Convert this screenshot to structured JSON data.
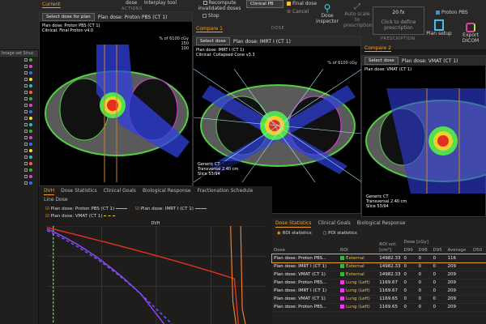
{
  "toolbar": {
    "actions_label": "ACTIONS",
    "dose_label": "DOSE",
    "prescription_label": "PRESCRIPTION",
    "interplay_tool": "Interplay tool",
    "dose": "dose",
    "recompute": "Recompute invalidated doses",
    "stop": "Stop",
    "clinical": "Clinical PB",
    "final_dose": "Final dose",
    "cancel": "Cancel",
    "dose_inspector": "Dose inspector",
    "auto_scale": "Auto scale to prescription",
    "fractions": "20 fx",
    "define_prescription": "Click to define prescription",
    "plan_type": "Proton PBS",
    "plan_setup": "Plan setup",
    "export": "Export DICOM"
  },
  "left_panel": {
    "header_a": "Image set",
    "header_b": "Struc",
    "roi_colors": [
      "#3cb043",
      "#e040e0",
      "#3070ff",
      "#f0e020",
      "#30c0c0",
      "#ff6030",
      "#3cb043",
      "#e040e0",
      "#3070ff",
      "#f0e020",
      "#30c0c0",
      "#3cb043",
      "#e040e0",
      "#3070ff",
      "#f0e020",
      "#30c0c0",
      "#ff6030",
      "#3cb043",
      "#e040e0",
      "#3070ff"
    ]
  },
  "views": [
    {
      "tab": "Current",
      "select": "Select dose for plan",
      "plan": "Plan dose: Proton PBS (CT 1)",
      "info1": "Plan dose: Proton PBS (CT 1)",
      "info2": "Clinical: Final Proton v4.0",
      "scale": "% of 6100 cGy",
      "scale_values": [
        "150",
        "100"
      ]
    },
    {
      "tab": "Compare 1",
      "select": "Select dose",
      "plan": "Plan dose: IMRT I (CT 1)",
      "info1": "Plan dose: IMRT I (CT 1)",
      "info2": "Clinical: Collapsed Cone v3.3",
      "scale": "% of 6100 cGy",
      "overlay1": "Generic CT",
      "overlay2": "Transversal 2.40 cm",
      "overlay3": "Slice 53/94"
    },
    {
      "tab": "Compare 2",
      "select": "Select dose",
      "plan": "Plan dose: VMAT (CT 1)",
      "info1": "Plan dose: VMAT (CT 1)",
      "overlay1": "Generic CT",
      "overlay2": "Transversal 2.40 cm",
      "overlay3": "Slice 53/94"
    }
  ],
  "dvh": {
    "tabs": [
      "DVH",
      "Dose Statistics",
      "Clinical Goals",
      "Biological Response",
      "Fractionation Schedule",
      "Line Dose"
    ],
    "legend": [
      "Plan dose: Proton PBS (CT 1)",
      "Plan dose: IMRT I (CT 1)",
      "Plan dose: VMAT (CT 1)"
    ],
    "xlabel": "DVH"
  },
  "stats": {
    "tabs": [
      "Dose Statistics",
      "Clinical Goals",
      "Biological Response"
    ],
    "radio_roi": "ROI statistics",
    "radio_poi": "POI statistics",
    "headers": [
      "Dose",
      "ROI",
      "ROI vol. [cm³]",
      "D99",
      "D98",
      "D95",
      "Average",
      "D50"
    ],
    "dose_unit": "Dose [cGy]",
    "rows": [
      {
        "dose": "Plan dose: Proton PBS...",
        "roi": "External",
        "color": "#3cb043",
        "vol": "14982.33",
        "d99": "0",
        "d98": "0",
        "d95": "0",
        "avg": "116"
      },
      {
        "dose": "Plan dose: IMRT I (CT 1)",
        "roi": "External",
        "color": "#3cb043",
        "vol": "14982.33",
        "d99": "0",
        "d98": "0",
        "d95": "0",
        "avg": "209"
      },
      {
        "dose": "Plan dose: VMAT (CT 1)",
        "roi": "External",
        "color": "#3cb043",
        "vol": "14982.33",
        "d99": "0",
        "d98": "0",
        "d95": "0",
        "avg": "209"
      },
      {
        "dose": "Plan dose: Proton PBS...",
        "roi": "Lung (Left)",
        "color": "#e040e0",
        "vol": "1169.67",
        "d99": "0",
        "d98": "0",
        "d95": "0",
        "avg": "209"
      },
      {
        "dose": "Plan dose: IMRT I (CT 1)",
        "roi": "Lung (Left)",
        "color": "#e040e0",
        "vol": "1169.67",
        "d99": "0",
        "d98": "0",
        "d95": "0",
        "avg": "209"
      },
      {
        "dose": "Plan dose: VMAT (CT 1)",
        "roi": "Lung (Left)",
        "color": "#e040e0",
        "vol": "1169.65",
        "d99": "0",
        "d98": "0",
        "d95": "0",
        "avg": "209"
      },
      {
        "dose": "Plan dose: Proton PBS...",
        "roi": "Lung (Left)",
        "color": "#e040e0",
        "vol": "1169.65",
        "d99": "0",
        "d98": "0",
        "d95": "0",
        "avg": "209"
      }
    ]
  }
}
